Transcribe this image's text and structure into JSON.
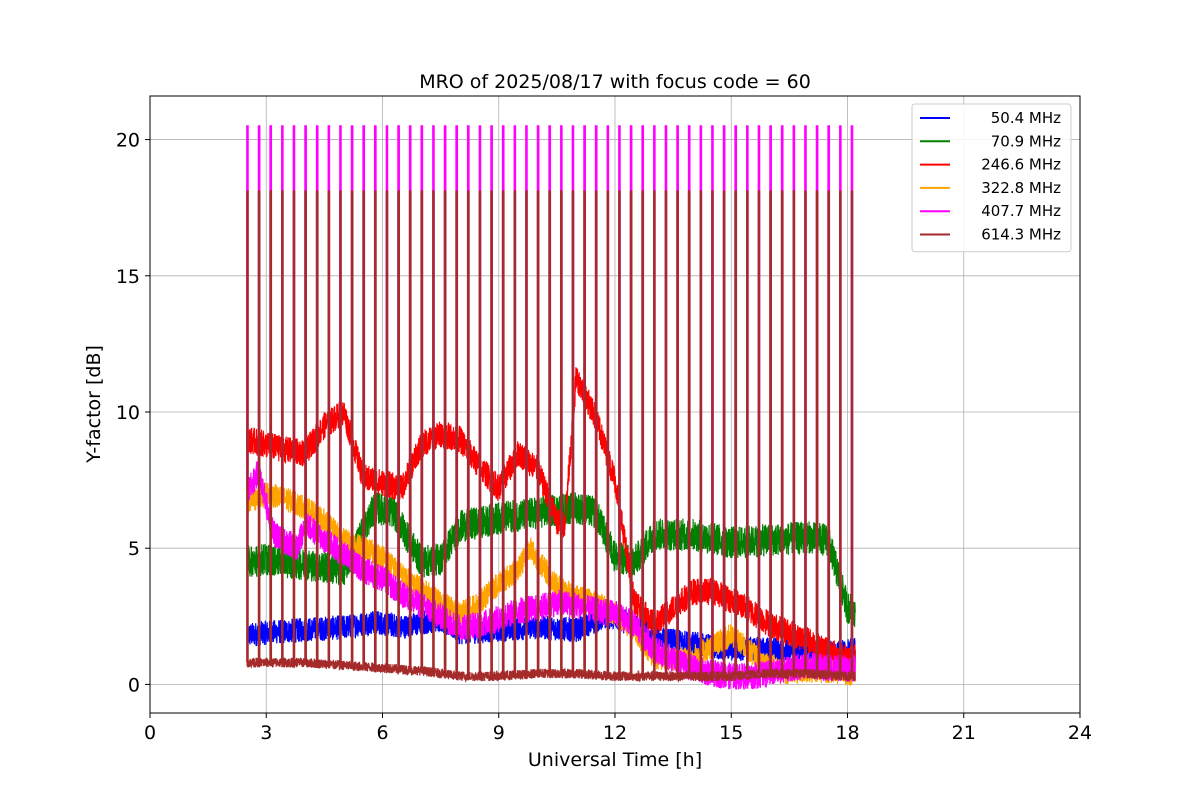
{
  "chart_data": {
    "type": "line",
    "title": "MRO of 2025/08/17 with focus code = 60",
    "xlabel": "Universal Time [h]",
    "ylabel": "Y-factor [dB]",
    "xlim": [
      0,
      24
    ],
    "ylim": [
      -1.05,
      21.6
    ],
    "xticks": [
      0,
      3,
      6,
      9,
      12,
      15,
      18,
      21,
      24
    ],
    "xtick_labels": [
      "0",
      "3",
      "6",
      "9",
      "12",
      "15",
      "18",
      "21",
      "24"
    ],
    "yticks": [
      0,
      5,
      10,
      15,
      20
    ],
    "ytick_labels": [
      "0",
      "5",
      "10",
      "15",
      "20"
    ],
    "grid": true,
    "legend_position": "top-right",
    "data_range_hours": [
      2.5,
      18.2
    ],
    "calibration_spike_interval_hours": 0.3,
    "series": [
      {
        "name": "50.4 MHz",
        "color": "#0000ff",
        "noise": 0.45,
        "x": [
          2.5,
          3.0,
          4.0,
          5.0,
          5.8,
          6.5,
          7.5,
          8.0,
          9.0,
          10.0,
          11.0,
          11.8,
          12.5,
          13.0,
          14.0,
          14.5,
          15.0,
          16.0,
          17.0,
          18.0,
          18.2
        ],
        "y": [
          1.8,
          1.9,
          2.0,
          2.1,
          2.3,
          2.1,
          2.4,
          1.9,
          2.0,
          2.1,
          2.0,
          2.5,
          2.2,
          1.7,
          1.5,
          1.4,
          1.3,
          1.3,
          1.2,
          1.2,
          1.3
        ]
      },
      {
        "name": "70.9 MHz",
        "color": "#008000",
        "noise": 0.6,
        "x": [
          2.5,
          3.0,
          4.0,
          4.5,
          5.0,
          5.8,
          6.3,
          7.0,
          7.5,
          8.0,
          9.0,
          10.0,
          11.0,
          11.5,
          12.0,
          12.5,
          13.0,
          14.0,
          15.0,
          16.0,
          17.0,
          17.5,
          18.0,
          18.2
        ],
        "y": [
          4.5,
          4.6,
          4.4,
          4.3,
          4.2,
          6.5,
          6.3,
          4.5,
          4.6,
          5.8,
          6.1,
          6.3,
          6.5,
          6.3,
          4.7,
          4.5,
          5.5,
          5.5,
          5.2,
          5.3,
          5.4,
          5.3,
          2.8,
          2.7
        ]
      },
      {
        "name": "246.6 MHz",
        "color": "#ff0000",
        "noise": 0.5,
        "x": [
          2.5,
          3.0,
          3.5,
          4.0,
          4.5,
          5.0,
          5.5,
          6.0,
          6.5,
          7.0,
          7.5,
          8.0,
          8.5,
          9.0,
          9.5,
          10.0,
          10.5,
          10.7,
          11.0,
          11.5,
          12.0,
          12.5,
          13.0,
          13.5,
          14.0,
          14.5,
          15.0,
          15.5,
          16.0,
          16.5,
          17.0,
          17.5,
          18.0,
          18.2
        ],
        "y": [
          9.0,
          8.8,
          8.6,
          8.5,
          9.5,
          10.0,
          7.6,
          7.4,
          7.2,
          8.8,
          9.2,
          9.0,
          8.0,
          7.2,
          8.5,
          7.9,
          6.0,
          5.8,
          11.3,
          9.8,
          7.5,
          3.0,
          2.2,
          2.8,
          3.4,
          3.4,
          3.1,
          2.7,
          2.2,
          1.9,
          1.6,
          1.2,
          1.0,
          1.0
        ]
      },
      {
        "name": "322.8 MHz",
        "color": "#ffa500",
        "noise": 0.45,
        "x": [
          2.5,
          3.0,
          3.5,
          4.0,
          4.5,
          5.0,
          5.5,
          6.0,
          6.5,
          7.0,
          7.5,
          8.0,
          8.5,
          9.0,
          9.5,
          9.8,
          10.5,
          11.0,
          11.5,
          12.0,
          12.5,
          13.0,
          13.5,
          14.0,
          14.5,
          15.0,
          15.5,
          16.0,
          16.5,
          17.0,
          17.5,
          18.0,
          18.2
        ],
        "y": [
          6.6,
          7.0,
          6.8,
          6.5,
          6.0,
          5.3,
          5.0,
          4.7,
          4.0,
          3.5,
          3.0,
          2.6,
          3.0,
          3.7,
          4.2,
          5.0,
          3.6,
          3.2,
          3.0,
          2.6,
          2.0,
          1.0,
          0.9,
          1.0,
          1.4,
          1.8,
          1.2,
          0.7,
          0.4,
          0.5,
          0.5,
          0.4,
          0.4
        ]
      },
      {
        "name": "407.7 MHz",
        "color": "#ff00ff",
        "noise": 0.5,
        "x": [
          2.5,
          2.8,
          3.2,
          3.8,
          4.0,
          4.5,
          5.0,
          5.5,
          6.0,
          6.5,
          7.0,
          7.5,
          8.0,
          8.5,
          9.0,
          9.5,
          10.0,
          10.5,
          11.0,
          11.5,
          12.0,
          12.5,
          13.0,
          13.5,
          14.0,
          14.5,
          15.0,
          15.5,
          16.0,
          16.5,
          17.0,
          17.5,
          18.0,
          18.2
        ],
        "y": [
          7.0,
          7.8,
          5.5,
          5.0,
          5.9,
          5.3,
          4.8,
          4.2,
          3.9,
          3.3,
          2.9,
          2.5,
          2.1,
          2.2,
          2.4,
          2.7,
          2.8,
          3.0,
          2.9,
          2.7,
          2.6,
          2.2,
          1.3,
          0.9,
          0.6,
          0.4,
          0.3,
          0.3,
          0.4,
          0.6,
          0.7,
          0.6,
          0.6,
          0.6
        ]
      },
      {
        "name": "614.3 MHz",
        "color": "#a52a2a",
        "noise": 0.18,
        "x": [
          2.5,
          3.0,
          4.0,
          5.0,
          6.0,
          7.0,
          8.0,
          9.0,
          10.0,
          11.0,
          12.0,
          13.0,
          14.0,
          15.0,
          16.0,
          17.0,
          18.0,
          18.2
        ],
        "y": [
          0.8,
          0.8,
          0.8,
          0.7,
          0.6,
          0.5,
          0.3,
          0.3,
          0.4,
          0.4,
          0.3,
          0.3,
          0.3,
          0.3,
          0.4,
          0.4,
          0.3,
          0.3
        ]
      }
    ]
  }
}
